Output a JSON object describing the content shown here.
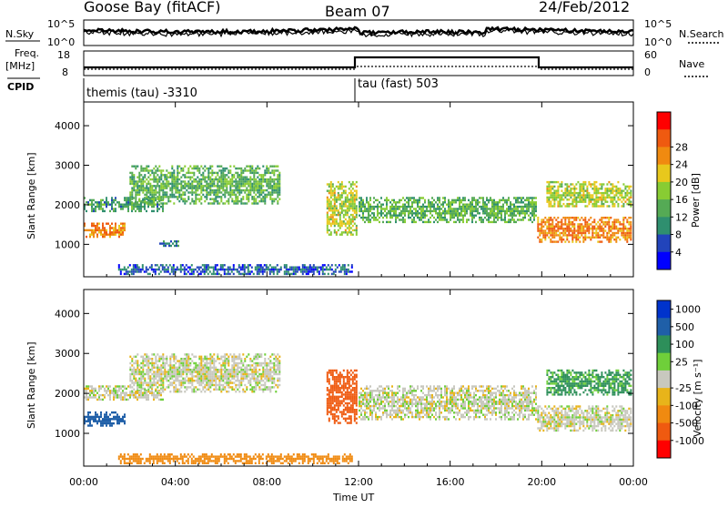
{
  "header": {
    "station": "Goose Bay (fitACF)",
    "beam": "Beam 07",
    "date": "24/Feb/2012"
  },
  "panels": {
    "nsky": {
      "label": "N.Sky",
      "ticks": [
        "10^5",
        "10^0"
      ]
    },
    "nsearch": {
      "label": "N.Search",
      "ticks": [
        "10^5",
        "10^0"
      ]
    },
    "freq": {
      "label_top": "Freq.",
      "label_unit": "[MHz]",
      "ticks": [
        "18",
        "8"
      ]
    },
    "nave": {
      "label": "Nave",
      "ticks": [
        "60",
        "0"
      ]
    },
    "cpid": {
      "label": "CPID",
      "modes": [
        "themis (tau) -3310",
        "tau (fast) 503"
      ]
    }
  },
  "colors": {
    "power_scale": [
      "#0000ff",
      "#2244bb",
      "#2f8f6f",
      "#55aa55",
      "#88cc33",
      "#e8c81c",
      "#f08a10",
      "#ef5a10",
      "#ff0000"
    ],
    "velocity_scale": [
      "#0033cc",
      "#1f5fa8",
      "#2d8f5a",
      "#6fcf3a",
      "#c8c8be",
      "#e8b41a",
      "#f08a10",
      "#ef5a10",
      "#ff0000"
    ],
    "ground_grey": "#c0c0b8"
  },
  "chart_data": [
    {
      "type": "heatmap",
      "name_id": "power",
      "ylabel": "Slant Range [km]",
      "x_range": [
        "00:00",
        "24:00"
      ],
      "ylim": [
        180,
        4600
      ],
      "yticks": [
        1000,
        2000,
        3000,
        4000
      ],
      "colorbar": {
        "label": "Power [dB]",
        "ticks": [
          "4",
          "8",
          "12",
          "16",
          "20",
          "24",
          "28"
        ]
      },
      "echo_regions": [
        {
          "x": [
            0.0,
            1.9
          ],
          "y": [
            1150,
            1550
          ],
          "value": 22
        },
        {
          "x": [
            0.0,
            3.5
          ],
          "y": [
            1800,
            2200
          ],
          "value": 10
        },
        {
          "x": [
            2.0,
            8.6
          ],
          "y": [
            2000,
            3000
          ],
          "value": 12
        },
        {
          "x": [
            3.3,
            4.2
          ],
          "y": [
            900,
            1100
          ],
          "value": 8
        },
        {
          "x": [
            1.5,
            11.8
          ],
          "y": [
            200,
            500
          ],
          "value": 6
        },
        {
          "x": [
            10.6,
            12.0
          ],
          "y": [
            1200,
            2600
          ],
          "value": 16
        },
        {
          "x": [
            12.0,
            19.8
          ],
          "y": [
            1500,
            2200
          ],
          "value": 12
        },
        {
          "x": [
            19.8,
            24.0
          ],
          "y": [
            1000,
            1700
          ],
          "value": 22
        },
        {
          "x": [
            20.2,
            24.0
          ],
          "y": [
            1900,
            2600
          ],
          "value": 16
        }
      ]
    },
    {
      "type": "heatmap",
      "name_id": "velocity",
      "ylabel": "Slant Range [km]",
      "xlabel": "Time UT",
      "x_range": [
        "00:00",
        "24:00"
      ],
      "xticks": [
        "00:00",
        "04:00",
        "08:00",
        "12:00",
        "16:00",
        "20:00",
        "00:00"
      ],
      "ylim": [
        180,
        4600
      ],
      "yticks": [
        1000,
        2000,
        3000,
        4000
      ],
      "colorbar": {
        "label": "Velocity [m s⁻¹]",
        "ticks": [
          "1000",
          "500",
          "100",
          "25",
          "-25",
          "-100",
          "-500",
          "-1000"
        ]
      },
      "echo_regions": [
        {
          "x": [
            0.0,
            1.9
          ],
          "y": [
            1150,
            1550
          ],
          "value": 300
        },
        {
          "x": [
            0.0,
            3.5
          ],
          "y": [
            1800,
            2200
          ],
          "value": 0
        },
        {
          "x": [
            2.0,
            8.6
          ],
          "y": [
            2000,
            3000
          ],
          "value": 0
        },
        {
          "x": [
            1.5,
            11.8
          ],
          "y": [
            200,
            500
          ],
          "value": -120
        },
        {
          "x": [
            10.6,
            12.0
          ],
          "y": [
            1200,
            2600
          ],
          "value": -300
        },
        {
          "x": [
            12.0,
            19.8
          ],
          "y": [
            1300,
            2200
          ],
          "value": 0
        },
        {
          "x": [
            19.8,
            24.0
          ],
          "y": [
            1000,
            1700
          ],
          "value": 0
        },
        {
          "x": [
            20.2,
            24.0
          ],
          "y": [
            1900,
            2600
          ],
          "value": 80
        }
      ]
    }
  ]
}
